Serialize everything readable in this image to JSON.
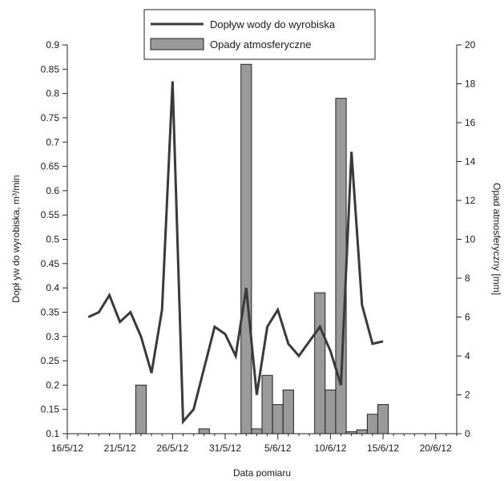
{
  "chart_data": {
    "type": "bar+line",
    "xlabel": "Data pomiaru",
    "ylabel_left": "Dopł yw do wyrobiska,  m³/min",
    "ylabel_right": "Opad atmosferyczny [mm]",
    "xlim": [
      "2012-05-16",
      "2012-06-22"
    ],
    "ylim_left": [
      0.1,
      0.9
    ],
    "ylim_right": [
      0,
      20
    ],
    "x_tick_labels": [
      "16/5/12",
      "21/5/12",
      "26/5/12",
      "31/5/12",
      "5/6/12",
      "10/6/12",
      "15/6/12",
      "20/6/12"
    ],
    "y_left_ticks": [
      "0.1",
      "0.15",
      "0.2",
      "0.25",
      "0.3",
      "0.35",
      "0.4",
      "0.45",
      "0.5",
      "0.55",
      "0.6",
      "0.65",
      "0.7",
      "0.75",
      "0.8",
      "0.85",
      "0.9"
    ],
    "y_right_ticks": [
      "0",
      "2",
      "4",
      "6",
      "8",
      "10",
      "12",
      "14",
      "16",
      "18",
      "20"
    ],
    "legend_position": "top-center",
    "series": [
      {
        "name": "Dopływ wody do wyrobiska",
        "type": "line",
        "axis": "left",
        "color": "#3a3a3a",
        "points": [
          {
            "x": "2012-05-18",
            "y": 0.34
          },
          {
            "x": "2012-05-19",
            "y": 0.35
          },
          {
            "x": "2012-05-20",
            "y": 0.385
          },
          {
            "x": "2012-05-21",
            "y": 0.33
          },
          {
            "x": "2012-05-22",
            "y": 0.35
          },
          {
            "x": "2012-05-23",
            "y": 0.3
          },
          {
            "x": "2012-05-24",
            "y": 0.225
          },
          {
            "x": "2012-05-25",
            "y": 0.355
          },
          {
            "x": "2012-05-26",
            "y": 0.825
          },
          {
            "x": "2012-05-27",
            "y": 0.125
          },
          {
            "x": "2012-05-28",
            "y": 0.15
          },
          {
            "x": "2012-05-29",
            "y": 0.235
          },
          {
            "x": "2012-05-30",
            "y": 0.32
          },
          {
            "x": "2012-05-31",
            "y": 0.305
          },
          {
            "x": "2012-06-01",
            "y": 0.26
          },
          {
            "x": "2012-06-02",
            "y": 0.4
          },
          {
            "x": "2012-06-03",
            "y": 0.18
          },
          {
            "x": "2012-06-04",
            "y": 0.32
          },
          {
            "x": "2012-06-05",
            "y": 0.355
          },
          {
            "x": "2012-06-06",
            "y": 0.285
          },
          {
            "x": "2012-06-07",
            "y": 0.26
          },
          {
            "x": "2012-06-09",
            "y": 0.32
          },
          {
            "x": "2012-06-10",
            "y": 0.27
          },
          {
            "x": "2012-06-11",
            "y": 0.2
          },
          {
            "x": "2012-06-12",
            "y": 0.68
          },
          {
            "x": "2012-06-13",
            "y": 0.365
          },
          {
            "x": "2012-06-14",
            "y": 0.285
          },
          {
            "x": "2012-06-15",
            "y": 0.29
          }
        ]
      },
      {
        "name": "Opady atmosferyczne",
        "type": "bar",
        "axis": "right",
        "color": "#9a9a9a",
        "points": [
          {
            "x": "2012-05-23",
            "y": 2.5
          },
          {
            "x": "2012-05-29",
            "y": 0.25
          },
          {
            "x": "2012-06-02",
            "y": 19
          },
          {
            "x": "2012-06-03",
            "y": 0.25
          },
          {
            "x": "2012-06-04",
            "y": 3
          },
          {
            "x": "2012-06-05",
            "y": 1.5
          },
          {
            "x": "2012-06-06",
            "y": 2.25
          },
          {
            "x": "2012-06-09",
            "y": 7.25
          },
          {
            "x": "2012-06-10",
            "y": 2.25
          },
          {
            "x": "2012-06-11",
            "y": 17.25
          },
          {
            "x": "2012-06-12",
            "y": 0.1
          },
          {
            "x": "2012-06-13",
            "y": 0.2
          },
          {
            "x": "2012-06-14",
            "y": 1
          },
          {
            "x": "2012-06-15",
            "y": 1.5
          }
        ]
      }
    ]
  }
}
